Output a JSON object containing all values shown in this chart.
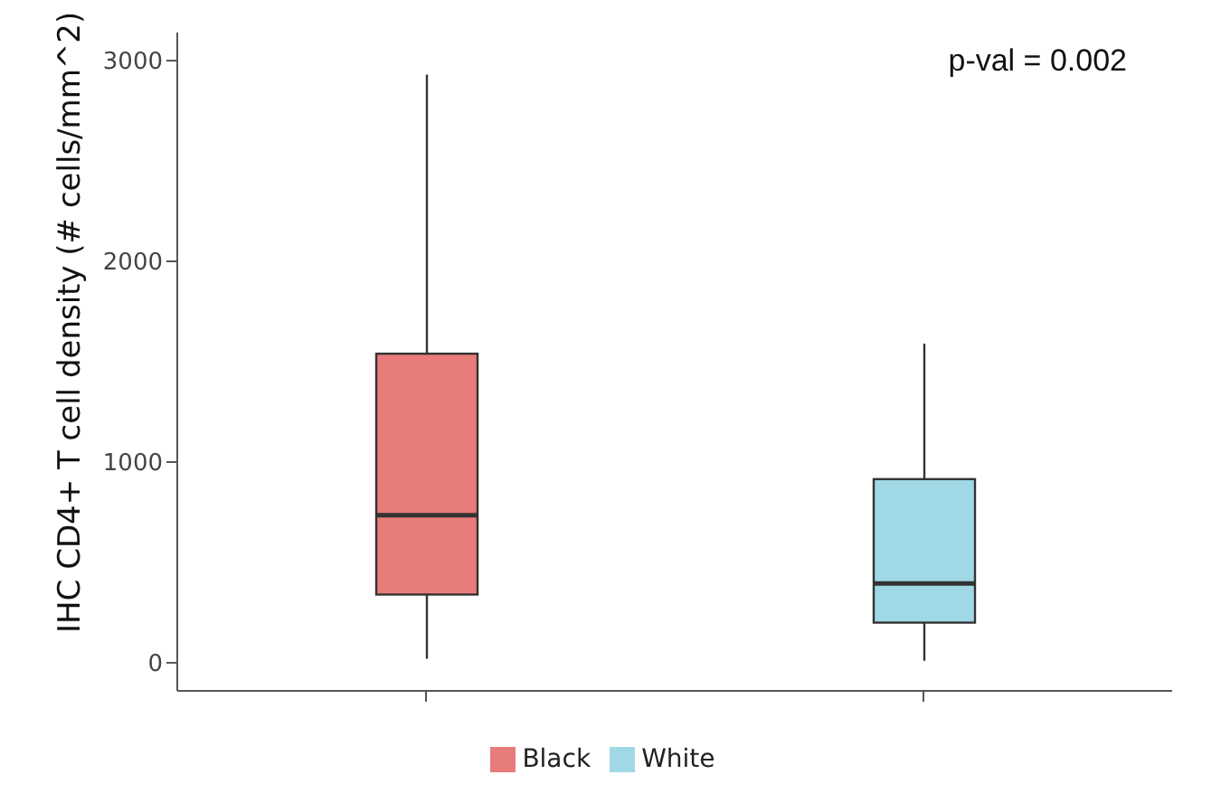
{
  "chart_data": {
    "type": "box",
    "ylabel": "IHC CD4+ T cell density (# cells/mm^2)",
    "categories": [
      null,
      null
    ],
    "series": [
      {
        "name": "Black",
        "color": "#e87c7a",
        "boxes": [
          {
            "low": 20,
            "q1": 340,
            "median": 735,
            "q3": 1540,
            "high": 2930
          },
          null
        ]
      },
      {
        "name": "White",
        "color": "#a0d8e6",
        "boxes": [
          null,
          {
            "low": 10,
            "q1": 200,
            "median": 395,
            "q3": 915,
            "high": 1590
          }
        ]
      }
    ],
    "ylim": [
      -140,
      3140
    ],
    "yticks": [
      0,
      1000,
      2000,
      3000
    ],
    "grid": false,
    "legend": "bottom",
    "tick_labels": "y",
    "annotations": [
      "p-val = 0.002"
    ]
  }
}
